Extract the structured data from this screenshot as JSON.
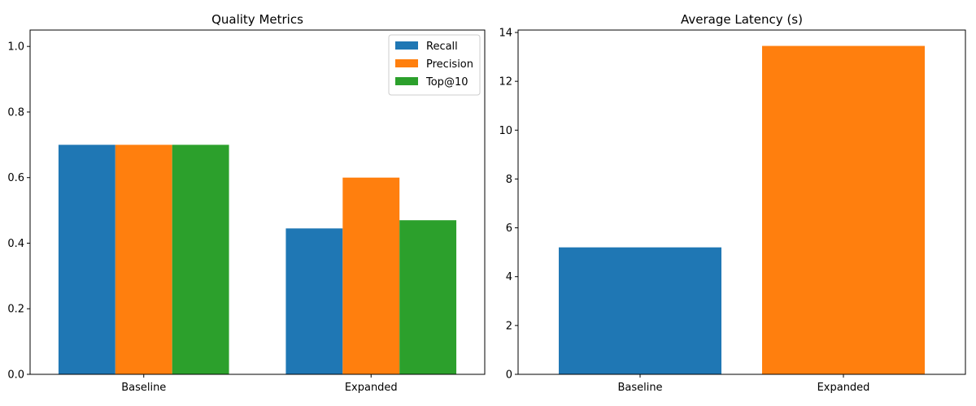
{
  "chart_data": [
    {
      "type": "bar",
      "title": "Quality Metrics",
      "xlabel": "",
      "ylabel": "",
      "categories": [
        "Baseline",
        "Expanded"
      ],
      "series": [
        {
          "name": "Recall",
          "color": "#1f77b4",
          "values": [
            0.7,
            0.445
          ]
        },
        {
          "name": "Precision",
          "color": "#ff7f0e",
          "values": [
            0.7,
            0.6
          ]
        },
        {
          "name": "Top@10",
          "color": "#2ca02c",
          "values": [
            0.7,
            0.47
          ]
        }
      ],
      "ylim": [
        0,
        1.05
      ],
      "yticks": [
        "0.0",
        "0.2",
        "0.4",
        "0.6",
        "0.8",
        "1.0"
      ],
      "legend": "top-right",
      "grid": false
    },
    {
      "type": "bar",
      "title": "Average Latency (s)",
      "xlabel": "",
      "ylabel": "",
      "categories": [
        "Baseline",
        "Expanded"
      ],
      "values": [
        5.2,
        13.45
      ],
      "colors": [
        "#1f77b4",
        "#ff7f0e"
      ],
      "ylim": [
        0,
        14.1
      ],
      "yticks": [
        "0",
        "2",
        "4",
        "6",
        "8",
        "10",
        "12",
        "14"
      ],
      "legend": "none",
      "grid": false
    }
  ]
}
